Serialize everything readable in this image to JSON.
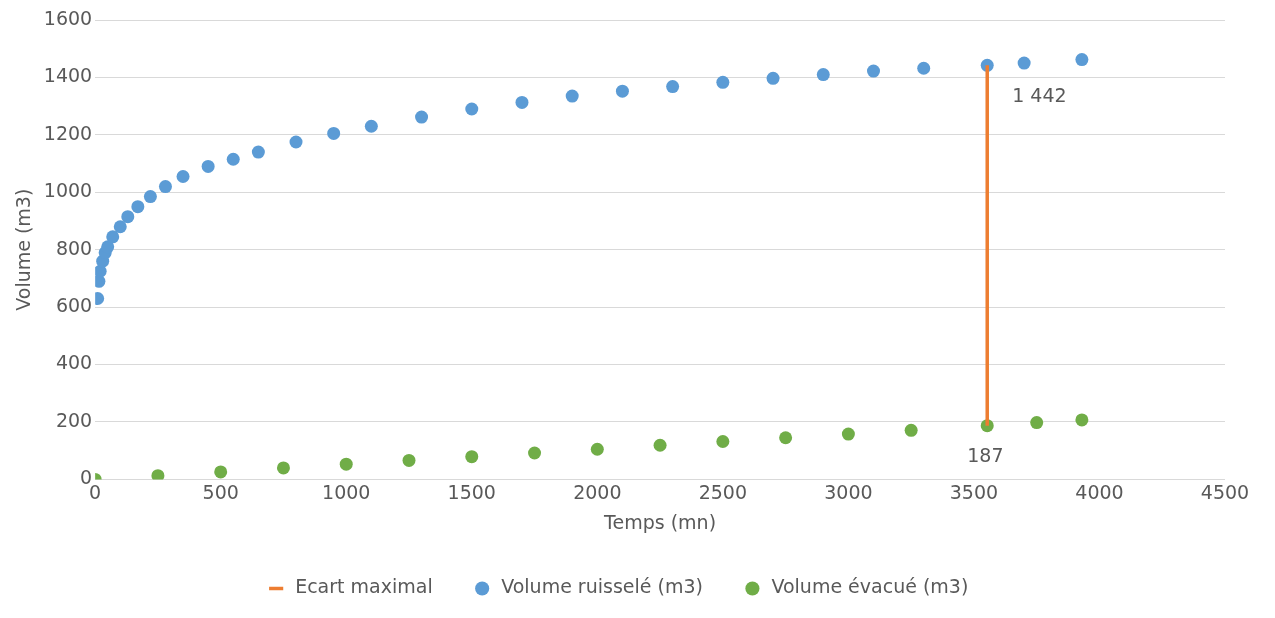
{
  "chart_data": {
    "type": "scatter",
    "xlabel": "Temps (mn)",
    "ylabel": "Volume (m3)",
    "xlim": [
      0,
      4500
    ],
    "xticks": [
      0,
      500,
      1000,
      1500,
      2000,
      2500,
      3000,
      3500,
      4000,
      4500
    ],
    "ylim": [
      0,
      1600
    ],
    "yticks": [
      0,
      200,
      400,
      600,
      800,
      1000,
      1200,
      1400,
      1600
    ],
    "grid": "y",
    "legend": "bottom",
    "marker": "circle",
    "series": [
      {
        "name": "Volume ruisselé (m3)",
        "color": "#5b9bd5",
        "type": "scatter",
        "x": [
          10,
          15,
          20,
          30,
          40,
          50,
          70,
          100,
          130,
          170,
          220,
          280,
          350,
          450,
          550,
          650,
          800,
          950,
          1100,
          1300,
          1500,
          1700,
          1900,
          2100,
          2300,
          2500,
          2700,
          2900,
          3100,
          3300,
          3553,
          3700,
          3930
        ],
        "values": [
          630,
          690,
          725,
          760,
          790,
          810,
          845,
          880,
          915,
          950,
          985,
          1020,
          1055,
          1090,
          1115,
          1140,
          1175,
          1205,
          1230,
          1262,
          1290,
          1313,
          1335,
          1352,
          1368,
          1383,
          1397,
          1410,
          1422,
          1432,
          1442,
          1450,
          1462
        ]
      },
      {
        "name": "Volume évacué (m3)",
        "color": "#70ad47",
        "type": "scatter",
        "x": [
          0,
          250,
          500,
          750,
          1000,
          1250,
          1500,
          1750,
          2000,
          2250,
          2500,
          2750,
          3000,
          3250,
          3553,
          3750,
          3930
        ],
        "values": [
          0,
          13,
          26,
          40,
          53,
          66,
          79,
          92,
          105,
          119,
          132,
          145,
          158,
          171,
          187,
          198,
          207
        ]
      },
      {
        "name": "Ecart maximal",
        "color": "#ed7d31",
        "type": "line",
        "marker": "none",
        "x": [
          3553,
          3553
        ],
        "values": [
          187,
          1442
        ]
      }
    ],
    "annotations": [
      {
        "text": "1 442",
        "x": 3553,
        "y": 1442
      },
      {
        "text": "187",
        "x": 3553,
        "y": 187
      }
    ]
  }
}
